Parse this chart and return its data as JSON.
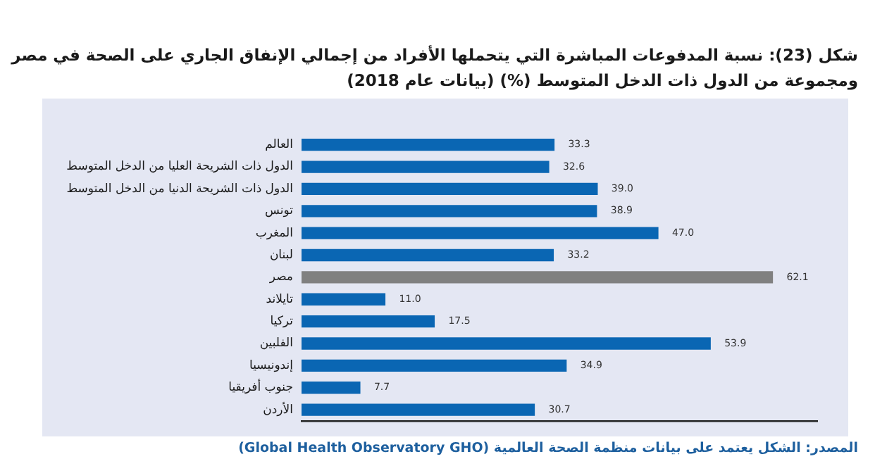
{
  "chart_data": {
    "type": "bar",
    "orientation": "horizontal",
    "title": "شكل (23): نسبة المدفوعات المباشرة التي يتحملها الأفراد من إجمالي الإنفاق الجاري على الصحة في مصر ومجموعة من الدول ذات الدخل المتوسط (%) (بيانات عام 2018)",
    "categories": [
      "العالم",
      "الدول ذات الشريحة العليا من الدخل المتوسط",
      "الدول ذات الشريحة الدنيا من الدخل المتوسط",
      "تونس",
      "المغرب",
      "لبنان",
      "مصر",
      "تايلاند",
      "تركيا",
      "الفلبين",
      "إندونيسيا",
      "جنوب أفريقيا",
      "الأردن"
    ],
    "values": [
      33.3,
      32.6,
      39.0,
      38.9,
      47.0,
      33.2,
      62.1,
      11.0,
      17.5,
      53.9,
      34.9,
      7.7,
      30.7
    ],
    "colors": [
      "#0a66b3",
      "#0a66b3",
      "#0a66b3",
      "#0a66b3",
      "#0a66b3",
      "#0a66b3",
      "#808080",
      "#0a66b3",
      "#0a66b3",
      "#0a66b3",
      "#0a66b3",
      "#0a66b3",
      "#0a66b3"
    ],
    "value_labels": [
      "33.3",
      "32.6",
      "39.0",
      "38.9",
      "47.0",
      "33.2",
      "62.1",
      "11.0",
      "17.5",
      "53.9",
      "34.9",
      "7.7",
      "30.7"
    ],
    "xlim": [
      0,
      68
    ],
    "tick_labels": "y",
    "annotations": [
      "المصدر: الشكل يعتمد على بيانات منظمة الصحة العالمية (Global Health Observatory GHO)"
    ]
  }
}
